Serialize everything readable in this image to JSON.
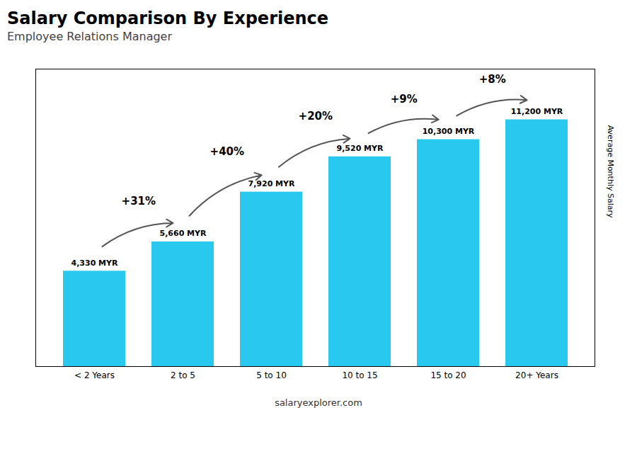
{
  "chart_data": {
    "type": "bar",
    "title": "Salary Comparison By Experience",
    "subtitle": "Employee Relations Manager",
    "categories": [
      "< 2 Years",
      "2 to 5",
      "5 to 10",
      "10 to 15",
      "15 to 20",
      "20+ Years"
    ],
    "values": [
      4330,
      5660,
      7920,
      9520,
      10300,
      11200
    ],
    "value_labels": [
      "4,330 MYR",
      "5,660 MYR",
      "7,920 MYR",
      "9,520 MYR",
      "10,300 MYR",
      "11,200 MYR"
    ],
    "data_labels": true,
    "annotations": [
      "+31%",
      "+40%",
      "+20%",
      "+9%",
      "+8%"
    ],
    "ylabel": "Average Monthly Salary",
    "caption": "salaryexplorer.com",
    "color": "#29c9ef",
    "ylim": [
      0,
      13500
    ],
    "tick_labels": "x",
    "grid": false
  }
}
